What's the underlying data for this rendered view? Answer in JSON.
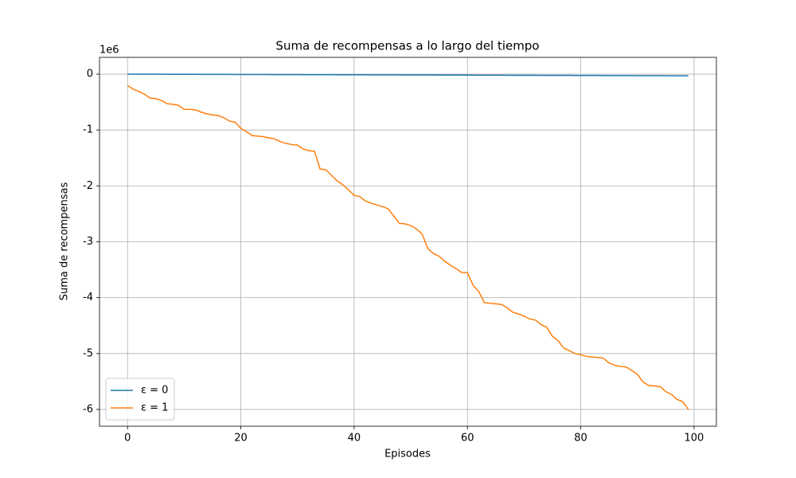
{
  "chart_data": {
    "type": "line",
    "title": "Suma de recompensas a lo largo del tiempo",
    "x_label": "Episodes",
    "y_label": "Suma de recompensas",
    "y_offset_label": "1e6",
    "x": [
      0,
      1,
      2,
      3,
      4,
      5,
      6,
      7,
      8,
      9,
      10,
      11,
      12,
      13,
      14,
      15,
      16,
      17,
      18,
      19,
      20,
      21,
      22,
      23,
      24,
      25,
      26,
      27,
      28,
      29,
      30,
      31,
      32,
      33,
      34,
      35,
      36,
      37,
      38,
      39,
      40,
      41,
      42,
      43,
      44,
      45,
      46,
      47,
      48,
      49,
      50,
      51,
      52,
      53,
      54,
      55,
      56,
      57,
      58,
      59,
      60,
      61,
      62,
      63,
      64,
      65,
      66,
      67,
      68,
      69,
      70,
      71,
      72,
      73,
      74,
      75,
      76,
      77,
      78,
      79,
      80,
      81,
      82,
      83,
      84,
      85,
      86,
      87,
      88,
      89,
      90,
      91,
      92,
      93,
      94,
      95,
      96,
      97,
      98,
      99
    ],
    "series": [
      {
        "name": "ε = 0",
        "color": "#1f77b4",
        "values": [
          0,
          -0.0003,
          -0.0006,
          -0.0009,
          -0.0012,
          -0.0015,
          -0.0018,
          -0.0021,
          -0.0024,
          -0.0027,
          -0.003,
          -0.0033,
          -0.0036,
          -0.0039,
          -0.0042,
          -0.0045,
          -0.0048,
          -0.0051,
          -0.0054,
          -0.0057,
          -0.006,
          -0.0063,
          -0.0066,
          -0.0069,
          -0.0072,
          -0.0075,
          -0.0078,
          -0.0081,
          -0.0084,
          -0.0087,
          -0.009,
          -0.0093,
          -0.0096,
          -0.0099,
          -0.0102,
          -0.0105,
          -0.0108,
          -0.0111,
          -0.0114,
          -0.0117,
          -0.012,
          -0.0123,
          -0.0126,
          -0.0129,
          -0.0132,
          -0.0135,
          -0.0138,
          -0.0141,
          -0.0144,
          -0.0147,
          -0.015,
          -0.0153,
          -0.0156,
          -0.0159,
          -0.0162,
          -0.0165,
          -0.0168,
          -0.0171,
          -0.0174,
          -0.0177,
          -0.018,
          -0.0183,
          -0.0186,
          -0.0189,
          -0.0192,
          -0.0195,
          -0.0198,
          -0.0201,
          -0.0204,
          -0.0207,
          -0.021,
          -0.0213,
          -0.0216,
          -0.0219,
          -0.0222,
          -0.0225,
          -0.0228,
          -0.0231,
          -0.0234,
          -0.0237,
          -0.024,
          -0.0243,
          -0.0246,
          -0.0249,
          -0.0252,
          -0.0255,
          -0.0258,
          -0.0261,
          -0.0264,
          -0.0267,
          -0.027,
          -0.0273,
          -0.0276,
          -0.0279,
          -0.0282,
          -0.0285,
          -0.0288,
          -0.0291,
          -0.0294,
          -0.0297
        ]
      },
      {
        "name": "ε = 1",
        "color": "#ff7f0e",
        "values": [
          -0.2,
          -0.27,
          -0.31,
          -0.36,
          -0.43,
          -0.44,
          -0.47,
          -0.53,
          -0.54,
          -0.56,
          -0.63,
          -0.63,
          -0.64,
          -0.68,
          -0.71,
          -0.73,
          -0.74,
          -0.78,
          -0.84,
          -0.86,
          -0.97,
          -1.03,
          -1.1,
          -1.11,
          -1.12,
          -1.14,
          -1.16,
          -1.21,
          -1.24,
          -1.26,
          -1.27,
          -1.34,
          -1.37,
          -1.38,
          -1.7,
          -1.71,
          -1.81,
          -1.91,
          -1.98,
          -2.07,
          -2.17,
          -2.19,
          -2.27,
          -2.31,
          -2.34,
          -2.37,
          -2.41,
          -2.54,
          -2.67,
          -2.68,
          -2.71,
          -2.77,
          -2.86,
          -3.12,
          -3.21,
          -3.26,
          -3.35,
          -3.42,
          -3.48,
          -3.55,
          -3.55,
          -3.78,
          -3.89,
          -4.09,
          -4.1,
          -4.11,
          -4.12,
          -4.18,
          -4.26,
          -4.29,
          -4.33,
          -4.38,
          -4.4,
          -4.48,
          -4.53,
          -4.69,
          -4.77,
          -4.9,
          -4.95,
          -5.0,
          -5.02,
          -5.05,
          -5.06,
          -5.07,
          -5.08,
          -5.17,
          -5.21,
          -5.23,
          -5.24,
          -5.3,
          -5.37,
          -5.51,
          -5.57,
          -5.58,
          -5.59,
          -5.68,
          -5.73,
          -5.82,
          -5.86,
          -6.0
        ]
      }
    ],
    "xlim": [
      -4.95,
      103.95
    ],
    "ylim": [
      -6.3,
      0.3
    ],
    "xticks": [
      0,
      20,
      40,
      60,
      80,
      100
    ],
    "yticks": [
      -6,
      -5,
      -4,
      -3,
      -2,
      -1,
      0
    ],
    "grid": true,
    "legend": "lower left"
  }
}
